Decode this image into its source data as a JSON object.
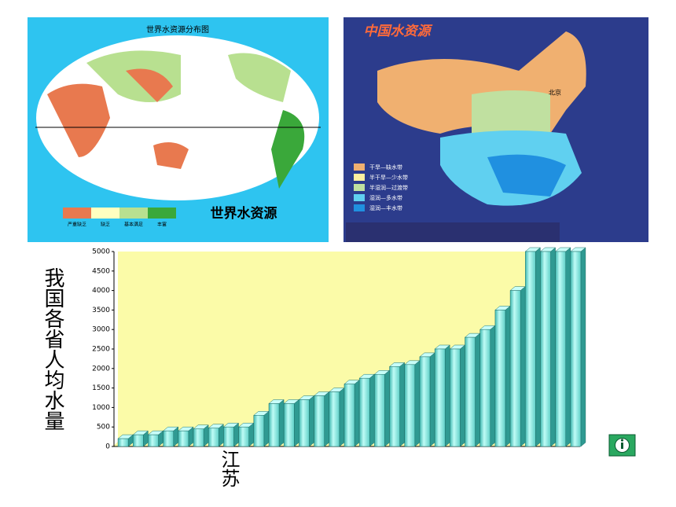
{
  "world_map": {
    "title": "世界水资源分布图",
    "caption": "世界水资源",
    "legend": [
      "严重缺乏",
      "缺乏",
      "基本满足",
      "丰富"
    ]
  },
  "china_map": {
    "title": "中国水资源",
    "city": "北京",
    "legend": [
      "干旱—缺水带",
      "半干旱—少水带",
      "半湿润—过渡带",
      "湿润—多水带",
      "湿润—丰水带"
    ]
  },
  "chart_data": {
    "type": "bar",
    "y_label": "我国各省人均水量",
    "categories": [
      null,
      null,
      null,
      null,
      null,
      null,
      null,
      "江苏",
      null,
      null,
      null,
      null,
      null,
      null,
      null,
      null,
      null,
      null,
      null,
      null,
      null,
      null,
      null,
      null,
      null,
      null,
      null,
      null,
      null,
      null,
      null
    ],
    "values": [
      200,
      300,
      300,
      400,
      400,
      450,
      470,
      500,
      500,
      800,
      1100,
      1100,
      1200,
      1300,
      1400,
      1600,
      1750,
      1850,
      2050,
      2100,
      2300,
      2500,
      2500,
      2800,
      3000,
      3500,
      4000,
      5000,
      5000,
      5000,
      5000
    ],
    "color": "#7fe8e0",
    "ylim": [
      0,
      5000
    ],
    "yticks": [
      0,
      500,
      1000,
      1500,
      2000,
      2500,
      3000,
      3500,
      4000,
      4500,
      5000
    ],
    "grid": false
  }
}
